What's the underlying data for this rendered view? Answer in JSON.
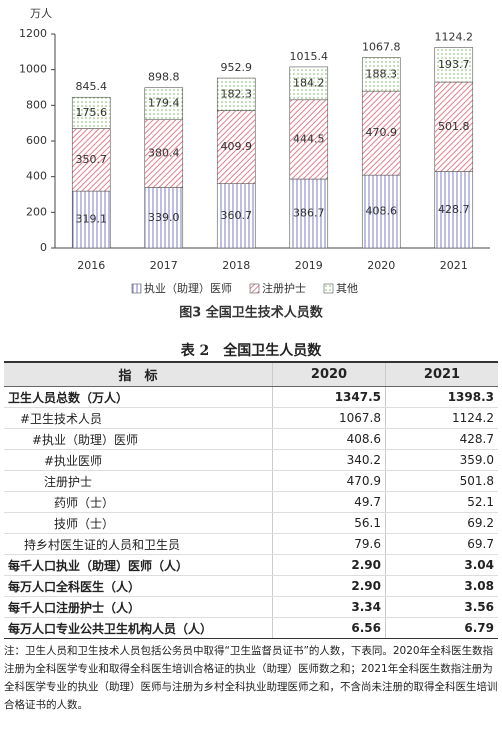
{
  "chart_data": {
    "type": "stacked_bar",
    "title": "图3 全国卫生技术人员数",
    "y_unit": "万人",
    "categories": [
      "2016",
      "2017",
      "2018",
      "2019",
      "2020",
      "2021"
    ],
    "series": [
      {
        "name": "执业（助理）医师",
        "color": "#7070c0",
        "values": [
          319.1,
          339.0,
          360.7,
          386.7,
          408.6,
          428.7
        ],
        "value_labels": [
          "319.1",
          "339.0",
          "360.7",
          "386.7",
          "408.6",
          "428.7"
        ]
      },
      {
        "name": "注册护士",
        "color": "#e07080",
        "values": [
          350.7,
          380.4,
          409.9,
          444.5,
          470.9,
          501.8
        ]
      },
      {
        "name": "其他",
        "color": "#80b860",
        "values": [
          175.6,
          179.4,
          182.3,
          184.2,
          188.3,
          193.7
        ]
      }
    ],
    "totals": [
      845.4,
      898.8,
      952.9,
      1015.4,
      1067.8,
      1124.2
    ],
    "ylim": [
      0,
      1200
    ],
    "yticks": [
      0,
      200,
      400,
      600,
      800,
      1000,
      1200
    ]
  },
  "table": {
    "title": "表 2　全国卫生人员数",
    "header": [
      "指　标",
      "2020",
      "2021"
    ],
    "rows": [
      [
        "卫生人员总数（万人）",
        "1347.5",
        "1398.3"
      ],
      [
        "#卫生技术人员",
        "1067.8",
        "1124.2"
      ],
      [
        "#执业（助理）医师",
        "408.6",
        "428.7"
      ],
      [
        "#执业医师",
        "340.2",
        "359.0"
      ],
      [
        "注册护士",
        "470.9",
        "501.8"
      ],
      [
        "药师（士）",
        "49.7",
        "52.1"
      ],
      [
        "技师（士）",
        "56.1",
        "69.2"
      ],
      [
        "持乡村医生证的人员和卫生员",
        "79.6",
        "69.7"
      ],
      [
        "每千人口执业（助理）医师（人）",
        "2.90",
        "3.04"
      ],
      [
        "每万人口全科医生（人）",
        "2.90",
        "3.08"
      ],
      [
        "每千人口注册护士（人）",
        "3.34",
        "3.56"
      ],
      [
        "每万人口专业公共卫生机构人员（人）",
        "6.56",
        "6.79"
      ]
    ]
  },
  "note": "注：卫生人员和卫生技术人员包括公务员中取得“卫生监督员证书”的人数，下表同。2020年全科医生数指注册为全科医学专业和取得全科医生培训合格证的执业（助理）医师数之和；2021年全科医生数指注册为全科医学专业的执业（助理）医师与注册为乡村全科执业助理医师之和，不含尚未注册的取得全科医生培训合格证书的人数。"
}
